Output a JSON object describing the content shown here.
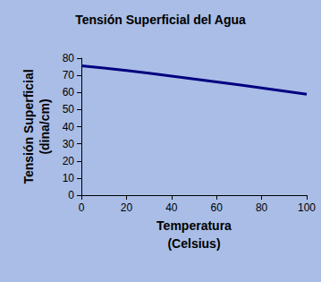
{
  "chart_data": {
    "type": "line",
    "title": "Tensión Superficial del Agua",
    "xlabel": "Temperatura\n(Celsius)",
    "ylabel": "Tensión Superficial\n(dina/cm)",
    "x": [
      0,
      10,
      20,
      30,
      40,
      50,
      60,
      70,
      80,
      90,
      100
    ],
    "values": [
      75.6,
      74.2,
      72.8,
      71.2,
      69.6,
      67.9,
      66.2,
      64.4,
      62.6,
      60.8,
      58.9
    ],
    "color": "#000080",
    "xlim": [
      0,
      100
    ],
    "xticks": [
      0,
      20,
      40,
      60,
      80,
      100
    ],
    "ylim": [
      0,
      80
    ],
    "yticks": [
      0,
      10,
      20,
      30,
      40,
      50,
      60,
      70,
      80
    ],
    "grid": false,
    "marker": "none"
  }
}
